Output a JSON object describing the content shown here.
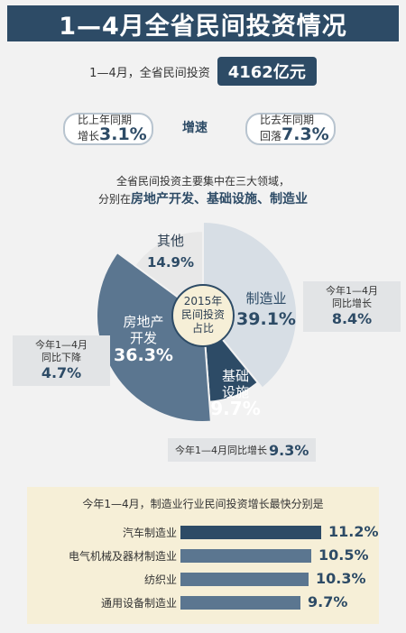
{
  "title": "1—4月全省民间投资情况",
  "total": {
    "label": "1—4月，全省民间投资",
    "value": "4162亿元"
  },
  "growth": {
    "left": {
      "line1": "比上年同期",
      "line2_prefix": "增长",
      "line2_value": "3.1%"
    },
    "center": "增速",
    "right": {
      "line1": "比去年同期",
      "line2_prefix": "回落",
      "line2_value": "7.3%"
    }
  },
  "focus": {
    "line1": "全省民间投资主要集中在三大领域，",
    "line2_prefix": "分别在",
    "line2_bold": "房地产开发、基础设施、制造业"
  },
  "chart_data": [
    {
      "type": "pie",
      "title": "2015年民间投资占比",
      "center_label": [
        "2015年",
        "民间投资",
        "占比"
      ],
      "slices": [
        {
          "name": "制造业",
          "value": 39.1,
          "label": "39.1%",
          "color": "#d7dee5"
        },
        {
          "name": "基础设施",
          "value": 9.7,
          "label": "9.7%",
          "color": "#2d4b66"
        },
        {
          "name": "房地产开发",
          "value": 36.3,
          "label": "36.3%",
          "color": "#5b7690"
        },
        {
          "name": "其他",
          "value": 14.9,
          "label": "14.9%",
          "color": "#e8e8e8"
        }
      ],
      "callouts": {
        "manufacturing": {
          "text1": "今年1—4月",
          "text2": "同比增长",
          "value": "8.4%"
        },
        "real_estate": {
          "text1": "今年1—4月",
          "text2": "同比下降",
          "value": "4.7%"
        },
        "infrastructure": {
          "text": "今年1—4月同比增长",
          "value": "9.3%"
        }
      }
    },
    {
      "type": "bar",
      "title": "今年1—4月，制造业行业民间投资增长最快分别是",
      "categories": [
        "汽车制造业",
        "电气机械及器材制造业",
        "纺织业",
        "通用设备制造业"
      ],
      "values": [
        11.2,
        10.5,
        10.3,
        9.7
      ],
      "labels": [
        "11.2%",
        "10.5%",
        "10.3%",
        "9.7%"
      ],
      "colors": [
        "#2d4b66",
        "#5b7690",
        "#5b7690",
        "#5b7690"
      ]
    }
  ]
}
